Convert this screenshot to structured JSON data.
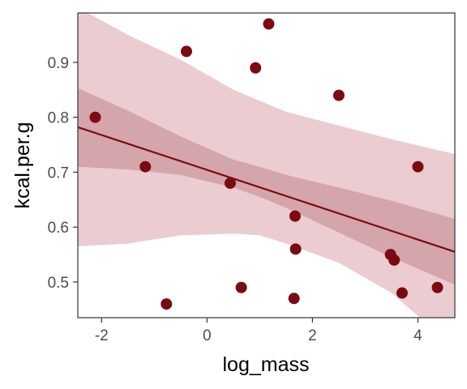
{
  "chart_data": {
    "type": "scatter",
    "xlabel": "log_mass",
    "ylabel": "kcal.per.g",
    "xlim": [
      -2.45,
      4.7
    ],
    "ylim": [
      0.435,
      0.99
    ],
    "x_ticks": [
      -2,
      0,
      2,
      4
    ],
    "y_ticks": [
      0.5,
      0.6,
      0.7,
      0.8,
      0.9
    ],
    "grid": false,
    "points": {
      "x": [
        -2.12,
        -1.17,
        -0.77,
        -0.39,
        0.44,
        0.65,
        0.92,
        1.17,
        1.65,
        1.67,
        1.68,
        2.5,
        3.48,
        3.55,
        3.7,
        4.0,
        4.37
      ],
      "y": [
        0.8,
        0.71,
        0.46,
        0.92,
        0.68,
        0.49,
        0.89,
        0.97,
        0.47,
        0.62,
        0.56,
        0.84,
        0.55,
        0.54,
        0.48,
        0.71,
        0.49
      ]
    },
    "regression_line": {
      "x": [
        -2.45,
        4.7
      ],
      "y": [
        0.782,
        0.555
      ]
    },
    "inner_band": {
      "x": [
        -2.45,
        -1.5,
        -0.5,
        0.5,
        1.0,
        1.5,
        2.5,
        3.5,
        4.7
      ],
      "lower": [
        0.71,
        0.705,
        0.695,
        0.672,
        0.655,
        0.635,
        0.59,
        0.545,
        0.495
      ],
      "upper": [
        0.853,
        0.812,
        0.765,
        0.723,
        0.71,
        0.695,
        0.672,
        0.648,
        0.615
      ]
    },
    "outer_band": {
      "x": [
        -2.45,
        -1.5,
        -0.5,
        0.5,
        1.0,
        1.5,
        2.5,
        3.5,
        4.7
      ],
      "lower": [
        0.565,
        0.57,
        0.585,
        0.588,
        0.585,
        0.57,
        0.535,
        0.48,
        0.38
      ],
      "upper": [
        1.0,
        0.95,
        0.905,
        0.85,
        0.83,
        0.81,
        0.785,
        0.76,
        0.733
      ]
    },
    "colors": {
      "points": "#7a0b12",
      "line": "#7a0b12",
      "inner_band": "#d4a5ab",
      "outer_band": "#ebccd0",
      "axis": "#333333",
      "background": "#ffffff"
    }
  }
}
